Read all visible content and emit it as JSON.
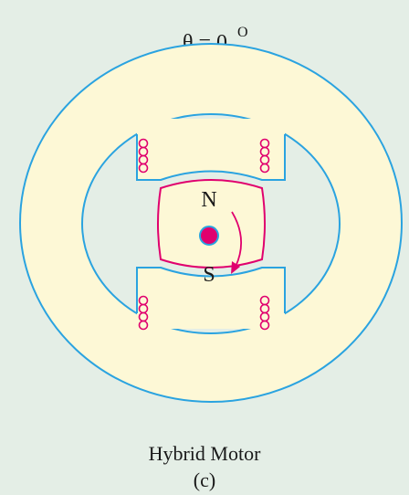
{
  "title": "θ = 0",
  "title_superscript": "O",
  "rotor": {
    "north": "N",
    "south": "S"
  },
  "caption": "Hybrid Motor",
  "label": "(c)"
}
